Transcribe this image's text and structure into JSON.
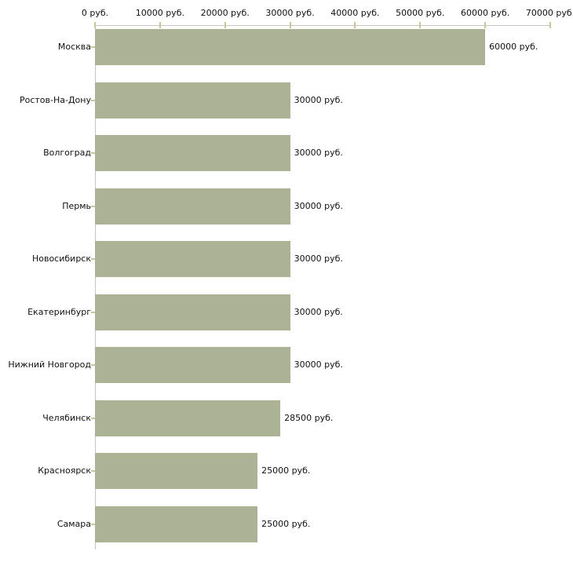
{
  "chart_data": {
    "type": "bar",
    "orientation": "horizontal",
    "title": "",
    "xlabel": "",
    "ylabel": "",
    "categories": [
      "Москва",
      "Ростов-На-Дону",
      "Волгоград",
      "Пермь",
      "Новосибирск",
      "Екатеринбург",
      "Нижний Новгород",
      "Челябинск",
      "Красноярск",
      "Самара"
    ],
    "values": [
      60000,
      30000,
      30000,
      30000,
      30000,
      30000,
      30000,
      28500,
      25000,
      25000
    ],
    "value_labels": [
      "60000 руб.",
      "30000 руб.",
      "30000 руб.",
      "30000 руб.",
      "30000 руб.",
      "30000 руб.",
      "30000 руб.",
      "28500 руб.",
      "25000 руб.",
      "25000 руб."
    ],
    "x_ticks": [
      "0 руб.",
      "10000 руб.",
      "20000 руб.",
      "30000 руб.",
      "40000 руб.",
      "50000 руб.",
      "60000 руб.",
      "70000 руб."
    ],
    "x_tick_values": [
      0,
      10000,
      20000,
      30000,
      40000,
      50000,
      60000,
      70000
    ],
    "xlim": [
      0,
      70000
    ],
    "grid": false,
    "legend": false,
    "bar_color": "#acb296",
    "axis_line_color": "#c6c6c6",
    "tick_mark_color": "#cbc79d",
    "text_color": "#111111",
    "background_color": "#ffffff"
  }
}
